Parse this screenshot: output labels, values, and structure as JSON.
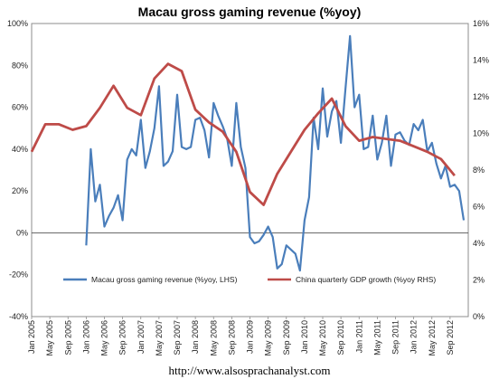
{
  "chart_data": {
    "type": "line",
    "title": "Macau gross gaming revenue (%yoy)",
    "footer": "http://www.alsosprachanalyst.com",
    "left_axis": {
      "min": -40,
      "max": 100,
      "step": 20,
      "tick_labels": [
        "-40%",
        "-20%",
        "0%",
        "20%",
        "40%",
        "60%",
        "80%",
        "100%"
      ]
    },
    "right_axis": {
      "min": 0,
      "max": 16,
      "step": 2,
      "tick_labels": [
        "0%",
        "2%",
        "4%",
        "6%",
        "8%",
        "10%",
        "12%",
        "14%",
        "16%"
      ]
    },
    "x_axis": {
      "start": "Jan 2005",
      "end": "Dec 2012",
      "tick_labels": [
        "Jan 2005",
        "May 2005",
        "Sep 2005",
        "Jan 2006",
        "May 2006",
        "Sep 2006",
        "Jan 2007",
        "May 2007",
        "Sep 2007",
        "Jan 2008",
        "May 2008",
        "Sep 2008",
        "Jan 2009",
        "May 2009",
        "Sep 2009",
        "Jan 2010",
        "May 2010",
        "Sep 2010",
        "Jan 2011",
        "May 2011",
        "Sep 2011",
        "Jan 2012",
        "May 2012",
        "Sep 2012"
      ]
    },
    "reference_line": {
      "axis": "left",
      "value": 0
    },
    "legend": {
      "placement": "bottom-center"
    },
    "series": [
      {
        "name": "Macau gross gaming revenue (%yoy, LHS)",
        "axis": "left",
        "color": "#4a7ebb",
        "points": [
          [
            "2006-01",
            -6
          ],
          [
            "2006-02",
            40
          ],
          [
            "2006-03",
            15
          ],
          [
            "2006-04",
            23
          ],
          [
            "2006-05",
            3
          ],
          [
            "2006-06",
            8
          ],
          [
            "2006-07",
            12
          ],
          [
            "2006-08",
            18
          ],
          [
            "2006-09",
            6
          ],
          [
            "2006-10",
            35
          ],
          [
            "2006-11",
            40
          ],
          [
            "2006-12",
            37
          ],
          [
            "2007-01",
            54
          ],
          [
            "2007-02",
            31
          ],
          [
            "2007-03",
            39
          ],
          [
            "2007-04",
            50
          ],
          [
            "2007-05",
            70
          ],
          [
            "2007-06",
            32
          ],
          [
            "2007-07",
            34
          ],
          [
            "2007-08",
            39
          ],
          [
            "2007-09",
            66
          ],
          [
            "2007-10",
            41
          ],
          [
            "2007-11",
            40
          ],
          [
            "2007-12",
            41
          ],
          [
            "2008-01",
            54
          ],
          [
            "2008-02",
            55
          ],
          [
            "2008-03",
            49
          ],
          [
            "2008-04",
            36
          ],
          [
            "2008-05",
            62
          ],
          [
            "2008-06",
            56
          ],
          [
            "2008-07",
            51
          ],
          [
            "2008-08",
            45
          ],
          [
            "2008-09",
            32
          ],
          [
            "2008-10",
            62
          ],
          [
            "2008-11",
            41
          ],
          [
            "2008-12",
            31
          ],
          [
            "2009-01",
            -2
          ],
          [
            "2009-02",
            -5
          ],
          [
            "2009-03",
            -4
          ],
          [
            "2009-04",
            -1
          ],
          [
            "2009-05",
            3
          ],
          [
            "2009-06",
            -2
          ],
          [
            "2009-07",
            -17
          ],
          [
            "2009-08",
            -15
          ],
          [
            "2009-09",
            -6
          ],
          [
            "2009-10",
            -8
          ],
          [
            "2009-11",
            -10
          ],
          [
            "2009-12",
            -18
          ],
          [
            "2010-01",
            6
          ],
          [
            "2010-02",
            17
          ],
          [
            "2010-03",
            55
          ],
          [
            "2010-04",
            40
          ],
          [
            "2010-05",
            69
          ],
          [
            "2010-06",
            46
          ],
          [
            "2010-07",
            58
          ],
          [
            "2010-08",
            63
          ],
          [
            "2010-09",
            43
          ],
          [
            "2010-10",
            69
          ],
          [
            "2010-11",
            94
          ],
          [
            "2010-12",
            60
          ],
          [
            "2011-01",
            66
          ],
          [
            "2011-02",
            40
          ],
          [
            "2011-03",
            41
          ],
          [
            "2011-04",
            56
          ],
          [
            "2011-05",
            35
          ],
          [
            "2011-06",
            43
          ],
          [
            "2011-07",
            56
          ],
          [
            "2011-08",
            32
          ],
          [
            "2011-09",
            47
          ],
          [
            "2011-10",
            48
          ],
          [
            "2011-11",
            44
          ],
          [
            "2011-12",
            42
          ],
          [
            "2012-01",
            52
          ],
          [
            "2012-02",
            49
          ],
          [
            "2012-03",
            54
          ],
          [
            "2012-04",
            39
          ],
          [
            "2012-05",
            43
          ],
          [
            "2012-06",
            33
          ],
          [
            "2012-07",
            26
          ],
          [
            "2012-08",
            32
          ],
          [
            "2012-09",
            22
          ],
          [
            "2012-10",
            23
          ],
          [
            "2012-11",
            20
          ],
          [
            "2012-12",
            6
          ]
        ]
      },
      {
        "name": "China quarterly GDP growth (%yoy RHS)",
        "axis": "right",
        "color": "#be4b48",
        "points": [
          [
            "2005-01",
            9.0
          ],
          [
            "2005-04",
            10.5
          ],
          [
            "2005-07",
            10.5
          ],
          [
            "2005-10",
            10.2
          ],
          [
            "2006-01",
            10.4
          ],
          [
            "2006-04",
            11.4
          ],
          [
            "2006-07",
            12.6
          ],
          [
            "2006-10",
            11.4
          ],
          [
            "2007-01",
            11.0
          ],
          [
            "2007-04",
            13.0
          ],
          [
            "2007-07",
            13.8
          ],
          [
            "2007-10",
            13.4
          ],
          [
            "2008-01",
            11.3
          ],
          [
            "2008-04",
            10.6
          ],
          [
            "2008-07",
            10.1
          ],
          [
            "2008-10",
            9.0
          ],
          [
            "2009-01",
            6.8
          ],
          [
            "2009-04",
            6.1
          ],
          [
            "2009-07",
            7.8
          ],
          [
            "2009-10",
            9.0
          ],
          [
            "2010-01",
            10.2
          ],
          [
            "2010-04",
            11.1
          ],
          [
            "2010-07",
            11.9
          ],
          [
            "2010-10",
            10.4
          ],
          [
            "2011-01",
            9.6
          ],
          [
            "2011-04",
            9.8
          ],
          [
            "2011-07",
            9.7
          ],
          [
            "2011-10",
            9.6
          ],
          [
            "2012-01",
            9.3
          ],
          [
            "2012-04",
            9.0
          ],
          [
            "2012-07",
            8.6
          ],
          [
            "2012-10",
            7.7
          ]
        ]
      }
    ]
  }
}
